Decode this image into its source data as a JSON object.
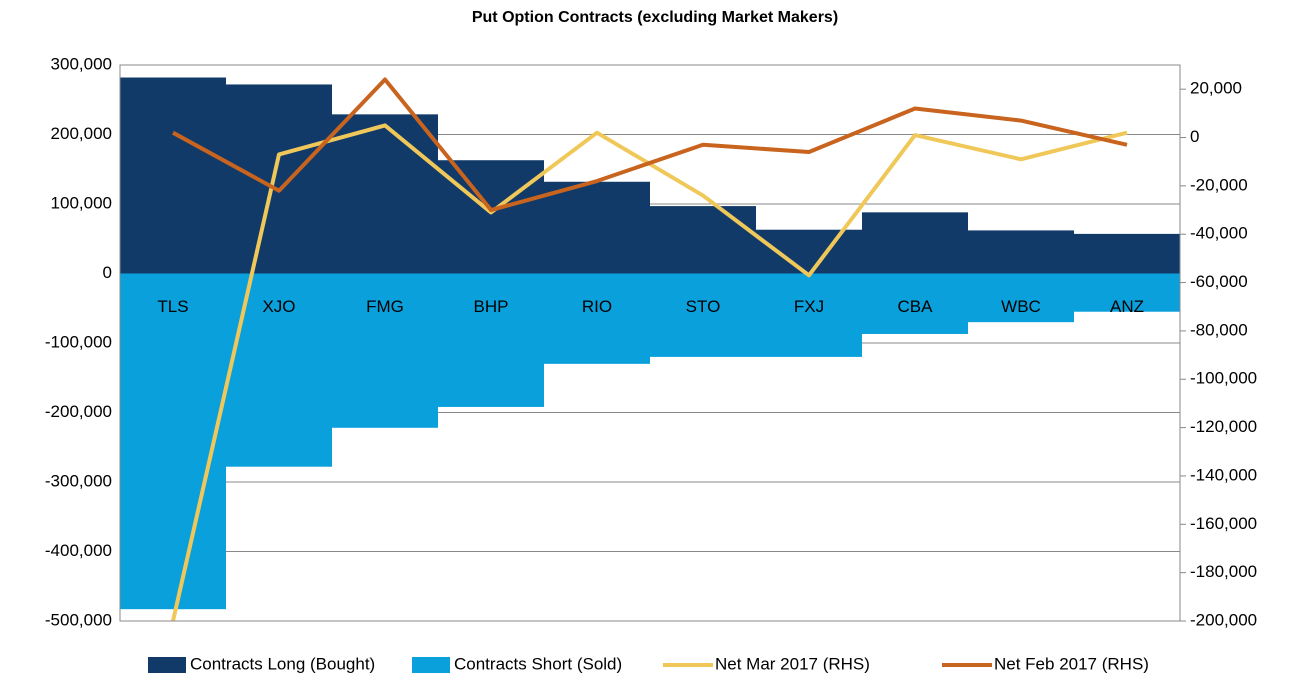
{
  "chart_data": {
    "type": "bar-line",
    "title": "Put Option Contracts (excluding Market Makers)",
    "categories": [
      "TLS",
      "XJO",
      "FMG",
      "BHP",
      "RIO",
      "STO",
      "FXJ",
      "CBA",
      "WBC",
      "ANZ"
    ],
    "series": [
      {
        "name": "Contracts Long (Bought)",
        "kind": "bar",
        "color": "#123a69",
        "values": [
          282000,
          272000,
          229000,
          163000,
          132000,
          97000,
          63000,
          88000,
          62000,
          57000
        ]
      },
      {
        "name": "Contracts Short (Sold)",
        "kind": "bar",
        "color": "#0aa0dc",
        "values": [
          -483000,
          -278000,
          -222000,
          -192000,
          -130000,
          -120000,
          -120000,
          -87000,
          -70000,
          -55000
        ]
      },
      {
        "name": "Net Mar 2017 (RHS)",
        "kind": "line",
        "axis": "y2",
        "color": "#f0c85a",
        "values": [
          -200000,
          -7000,
          5000,
          -31000,
          2000,
          -24000,
          -57000,
          1000,
          -9000,
          2000
        ]
      },
      {
        "name": "Net Feb 2017 (RHS)",
        "kind": "line",
        "axis": "y2",
        "color": "#c8641e",
        "values": [
          2000,
          -22000,
          24000,
          -30000,
          -18000,
          -3000,
          -6000,
          12000,
          7000,
          -3000
        ]
      }
    ],
    "ylim": [
      -500000,
      300000
    ],
    "yticks": [
      {
        "value": -500000,
        "label": "-500,000"
      },
      {
        "value": -400000,
        "label": "-400,000"
      },
      {
        "value": -300000,
        "label": "-300,000"
      },
      {
        "value": -200000,
        "label": "-200,000"
      },
      {
        "value": -100000,
        "label": "-100,000"
      },
      0,
      {
        "value": 100000,
        "label": "100,000"
      },
      {
        "value": 200000,
        "label": "200,000"
      },
      {
        "value": 300000,
        "label": "300,000"
      }
    ],
    "y2lim": [
      -200000,
      30000
    ],
    "y2ticks": [
      {
        "value": -200000,
        "label": "-200,000"
      },
      {
        "value": -180000,
        "label": "-180,000"
      },
      {
        "value": -160000,
        "label": "-160,000"
      },
      {
        "value": -140000,
        "label": "-140,000"
      },
      {
        "value": -120000,
        "label": "-120,000"
      },
      {
        "value": -100000,
        "label": "-100,000"
      },
      {
        "value": -80000,
        "label": "-80,000"
      },
      {
        "value": -60000,
        "label": "-60,000"
      },
      {
        "value": -40000,
        "label": "-40,000"
      },
      {
        "value": -20000,
        "label": "-20,000"
      },
      0,
      {
        "value": 20000,
        "label": "20,000"
      }
    ],
    "grid": true
  }
}
